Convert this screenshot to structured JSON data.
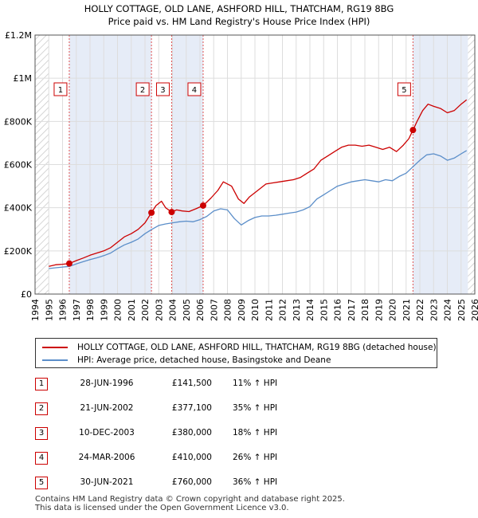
{
  "chart_data": {
    "type": "line",
    "title": "HOLLY COTTAGE, OLD LANE, ASHFORD HILL, THATCHAM, RG19 8BG",
    "subtitle": "Price paid vs. HM Land Registry's House Price Index (HPI)",
    "xlim": [
      1994,
      2026
    ],
    "ylim": [
      0,
      1200000
    ],
    "x_ticks": [
      1994,
      1995,
      1996,
      1997,
      1998,
      1999,
      2000,
      2001,
      2002,
      2003,
      2004,
      2005,
      2006,
      2007,
      2008,
      2009,
      2010,
      2011,
      2012,
      2013,
      2014,
      2015,
      2016,
      2017,
      2018,
      2019,
      2020,
      2021,
      2022,
      2023,
      2024,
      2025,
      2026
    ],
    "y_ticks": [
      {
        "value": 0,
        "label": "£0"
      },
      {
        "value": 200000,
        "label": "£200K"
      },
      {
        "value": 400000,
        "label": "£400K"
      },
      {
        "value": 600000,
        "label": "£600K"
      },
      {
        "value": 800000,
        "label": "£800K"
      },
      {
        "value": 1000000,
        "label": "£1M"
      },
      {
        "value": 1200000,
        "label": "£1.2M"
      }
    ],
    "series": [
      {
        "name": "HOLLY COTTAGE, OLD LANE, ASHFORD HILL, THATCHAM, RG19 8BG (detached house)",
        "color": "#cc0000",
        "x": [
          1995.0,
          1995.5,
          1996.0,
          1996.49,
          1997.0,
          1997.5,
          1998.0,
          1998.5,
          1999.0,
          1999.5,
          2000.0,
          2000.5,
          2001.0,
          2001.5,
          2002.0,
          2002.47,
          2002.8,
          2003.2,
          2003.5,
          2003.94,
          2004.3,
          2004.7,
          2005.2,
          2005.7,
          2006.23,
          2006.8,
          2007.3,
          2007.7,
          2008.3,
          2008.8,
          2009.2,
          2009.6,
          2010.2,
          2010.8,
          2011.3,
          2011.8,
          2012.3,
          2012.8,
          2013.3,
          2013.8,
          2014.3,
          2014.8,
          2015.3,
          2015.8,
          2016.3,
          2016.8,
          2017.3,
          2017.8,
          2018.3,
          2018.8,
          2019.3,
          2019.8,
          2020.3,
          2020.8,
          2021.2,
          2021.5,
          2021.8,
          2022.2,
          2022.6,
          2023.0,
          2023.5,
          2024.0,
          2024.5,
          2025.0,
          2025.4
        ],
        "values": [
          128000,
          136000,
          138000,
          141500,
          155000,
          167000,
          180000,
          190000,
          200000,
          215000,
          240000,
          265000,
          280000,
          300000,
          330000,
          377100,
          410000,
          430000,
          400000,
          380000,
          390000,
          385000,
          382000,
          395000,
          410000,
          445000,
          480000,
          520000,
          500000,
          440000,
          420000,
          450000,
          480000,
          510000,
          515000,
          520000,
          525000,
          530000,
          540000,
          560000,
          580000,
          620000,
          640000,
          660000,
          680000,
          690000,
          690000,
          685000,
          690000,
          680000,
          670000,
          680000,
          660000,
          690000,
          720000,
          760000,
          800000,
          850000,
          880000,
          870000,
          860000,
          840000,
          850000,
          880000,
          900000
        ]
      },
      {
        "name": "HPI: Average price, detached house, Basingstoke and Deane",
        "color": "#5b8ec9",
        "x": [
          1995.0,
          1995.5,
          1996.0,
          1996.5,
          1997.0,
          1997.5,
          1998.0,
          1998.5,
          1999.0,
          1999.5,
          2000.0,
          2000.5,
          2001.0,
          2001.5,
          2002.0,
          2002.5,
          2003.0,
          2003.5,
          2004.0,
          2004.5,
          2005.0,
          2005.5,
          2006.0,
          2006.5,
          2007.0,
          2007.5,
          2008.0,
          2008.5,
          2009.0,
          2009.5,
          2010.0,
          2010.5,
          2011.0,
          2011.5,
          2012.0,
          2012.5,
          2013.0,
          2013.5,
          2014.0,
          2014.5,
          2015.0,
          2015.5,
          2016.0,
          2016.5,
          2017.0,
          2017.5,
          2018.0,
          2018.5,
          2019.0,
          2019.5,
          2020.0,
          2020.5,
          2021.0,
          2021.5,
          2022.0,
          2022.5,
          2023.0,
          2023.5,
          2024.0,
          2024.5,
          2025.0,
          2025.4
        ],
        "values": [
          118000,
          122000,
          125000,
          128000,
          140000,
          150000,
          160000,
          168000,
          178000,
          190000,
          210000,
          228000,
          240000,
          255000,
          280000,
          300000,
          318000,
          325000,
          330000,
          335000,
          338000,
          335000,
          345000,
          360000,
          385000,
          395000,
          390000,
          350000,
          320000,
          340000,
          355000,
          362000,
          362000,
          365000,
          370000,
          375000,
          380000,
          390000,
          405000,
          440000,
          460000,
          480000,
          500000,
          510000,
          520000,
          525000,
          530000,
          525000,
          520000,
          530000,
          525000,
          545000,
          560000,
          590000,
          620000,
          645000,
          650000,
          640000,
          620000,
          630000,
          650000,
          665000
        ]
      }
    ],
    "sales": [
      {
        "num": "1",
        "x": 1996.49,
        "value": 141500
      },
      {
        "num": "2",
        "x": 2002.47,
        "value": 377100
      },
      {
        "num": "3",
        "x": 2003.94,
        "value": 380000
      },
      {
        "num": "4",
        "x": 2006.23,
        "value": 410000
      },
      {
        "num": "5",
        "x": 2021.5,
        "value": 760000
      }
    ],
    "forecast_start": 2025.5,
    "colors": {
      "property": "#cc0000",
      "hpi": "#5b8ec9",
      "shade": "#e6ecf7",
      "hatch": "#c8c8c8",
      "grid": "#dddddd"
    }
  },
  "legend": {
    "property": "HOLLY COTTAGE, OLD LANE, ASHFORD HILL, THATCHAM, RG19 8BG (detached house)",
    "hpi": "HPI: Average price, detached house, Basingstoke and Deane"
  },
  "sales_table": [
    {
      "num": "1",
      "date": "28-JUN-1996",
      "price": "£141,500",
      "hpi": "11% ↑ HPI"
    },
    {
      "num": "2",
      "date": "21-JUN-2002",
      "price": "£377,100",
      "hpi": "35% ↑ HPI"
    },
    {
      "num": "3",
      "date": "10-DEC-2003",
      "price": "£380,000",
      "hpi": "18% ↑ HPI"
    },
    {
      "num": "4",
      "date": "24-MAR-2006",
      "price": "£410,000",
      "hpi": "26% ↑ HPI"
    },
    {
      "num": "5",
      "date": "30-JUN-2021",
      "price": "£760,000",
      "hpi": "36% ↑ HPI"
    }
  ],
  "footer": {
    "line1": "Contains HM Land Registry data © Crown copyright and database right 2025.",
    "line2": "This data is licensed under the Open Government Licence v3.0."
  }
}
